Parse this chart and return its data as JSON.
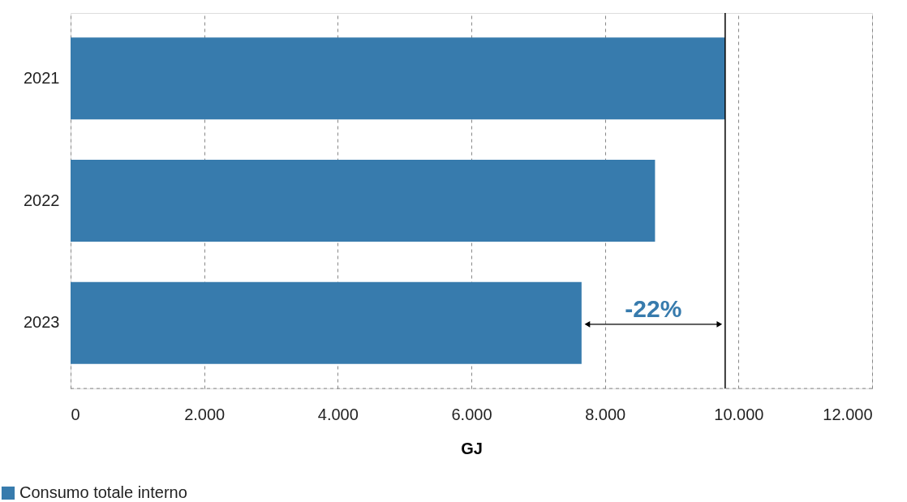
{
  "chart_data": {
    "type": "bar",
    "orientation": "horizontal",
    "categories": [
      "2021",
      "2022",
      "2023"
    ],
    "series": [
      {
        "name": "Consumo totale interno",
        "color": "#377bad",
        "values": [
          9800,
          8750,
          7650
        ]
      }
    ],
    "xlabel": "GJ",
    "xlim": [
      0,
      12000
    ],
    "xticks": [
      0,
      {
        "value": 2000,
        "label": "2.000"
      },
      {
        "value": 4000,
        "label": "4.000"
      },
      {
        "value": 6000,
        "label": "6.000"
      },
      {
        "value": 8000,
        "label": "8.000"
      },
      {
        "value": 10000,
        "label": "10.000"
      },
      {
        "value": 12000,
        "label": "12.000"
      }
    ],
    "grid": "x",
    "legend": "bottom left",
    "ref_lines": [
      {
        "axis": "x",
        "value": 9800,
        "color": "#000000"
      }
    ],
    "annotations": [
      "-22%"
    ]
  }
}
